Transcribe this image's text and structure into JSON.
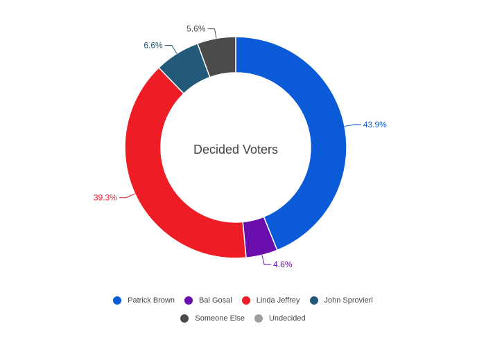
{
  "chart_data": {
    "type": "pie",
    "variant": "donut",
    "center_label": "Decided Voters",
    "slices": [
      {
        "name": "Patrick Brown",
        "value": 43.9,
        "label": "43.9%",
        "color": "#0b5bd9"
      },
      {
        "name": "Bal Gosal",
        "value": 4.6,
        "label": "4.6%",
        "color": "#6a0dad"
      },
      {
        "name": "Linda Jeffrey",
        "value": 39.3,
        "label": "39.3%",
        "color": "#ee1c25"
      },
      {
        "name": "John Sprovieri",
        "value": 6.6,
        "label": "6.6%",
        "color": "#235a7a"
      },
      {
        "name": "Someone Else",
        "value": 5.6,
        "label": "5.6%",
        "color": "#4a4a4a"
      }
    ],
    "legend": [
      {
        "name": "Patrick Brown",
        "color": "#0b5bd9"
      },
      {
        "name": "Bal Gosal",
        "color": "#6a0dad"
      },
      {
        "name": "Linda Jeffrey",
        "color": "#ee1c25"
      },
      {
        "name": "John Sprovieri",
        "color": "#235a7a"
      },
      {
        "name": "Someone Else",
        "color": "#4a4a4a"
      },
      {
        "name": "Undecided",
        "color": "#9e9e9e"
      }
    ],
    "legend_position": "bottom"
  }
}
